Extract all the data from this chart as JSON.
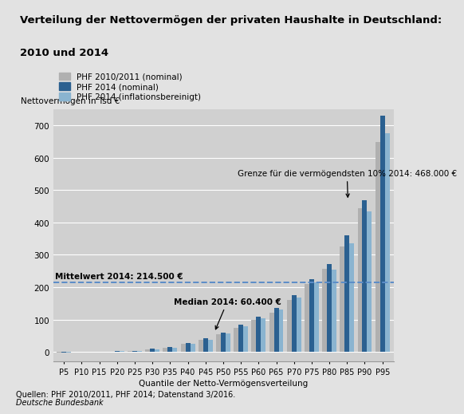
{
  "title_line1": "Verteilung der Nettovermögen der privaten Haushalte in Deutschland:",
  "title_line2": "2010 und 2014",
  "ylabel": "Nettovermögen in Tsd €",
  "xlabel": "Quantile der Netto-Vermögensverteilung",
  "source": "Quellen: PHF 2010/2011, PHF 2014; Datenstand 3/2016.",
  "source2": "Deutsche Bundesbank",
  "categories": [
    "P5",
    "P10",
    "P15",
    "P20",
    "P25",
    "P30",
    "P35",
    "P40",
    "P45",
    "P50",
    "P55",
    "P60",
    "P65",
    "P70",
    "P75",
    "P80",
    "P85",
    "P90",
    "P95"
  ],
  "phf2010": [
    -2,
    0,
    0,
    1,
    3,
    7,
    12,
    25,
    38,
    55,
    75,
    100,
    120,
    160,
    210,
    258,
    325,
    445,
    650
  ],
  "phf2014": [
    -3,
    0,
    0,
    2,
    4,
    9,
    15,
    28,
    42,
    60,
    85,
    110,
    137,
    175,
    225,
    272,
    360,
    468,
    730
  ],
  "phf2014_adj": [
    -3,
    0,
    0,
    2,
    4,
    8,
    13,
    25,
    38,
    57,
    80,
    105,
    130,
    168,
    215,
    255,
    336,
    435,
    675
  ],
  "mean_line": 214.5,
  "mean_label": "Mittelwert 2014: 214.500 €",
  "median_label": "Median 2014: 60.400 €",
  "border_label": "Grenze für die vermögendsten 10% 2014: 468.000 €",
  "color_2010": "#b0b0b0",
  "color_2014": "#2b6090",
  "color_2014_adj": "#8ab4d0",
  "legend_2010": "PHF 2010/2011 (nominal)",
  "legend_2014": "PHF 2014 (nominal)",
  "legend_2014_adj": "PHF 2014 (inflationsbereinigt)",
  "ylim_min": -30,
  "ylim_max": 750,
  "bg_color": "#e2e2e2",
  "plot_bg": "#d0d0d0",
  "mean_line_color": "#5b8dc8",
  "bar_width": 0.27
}
